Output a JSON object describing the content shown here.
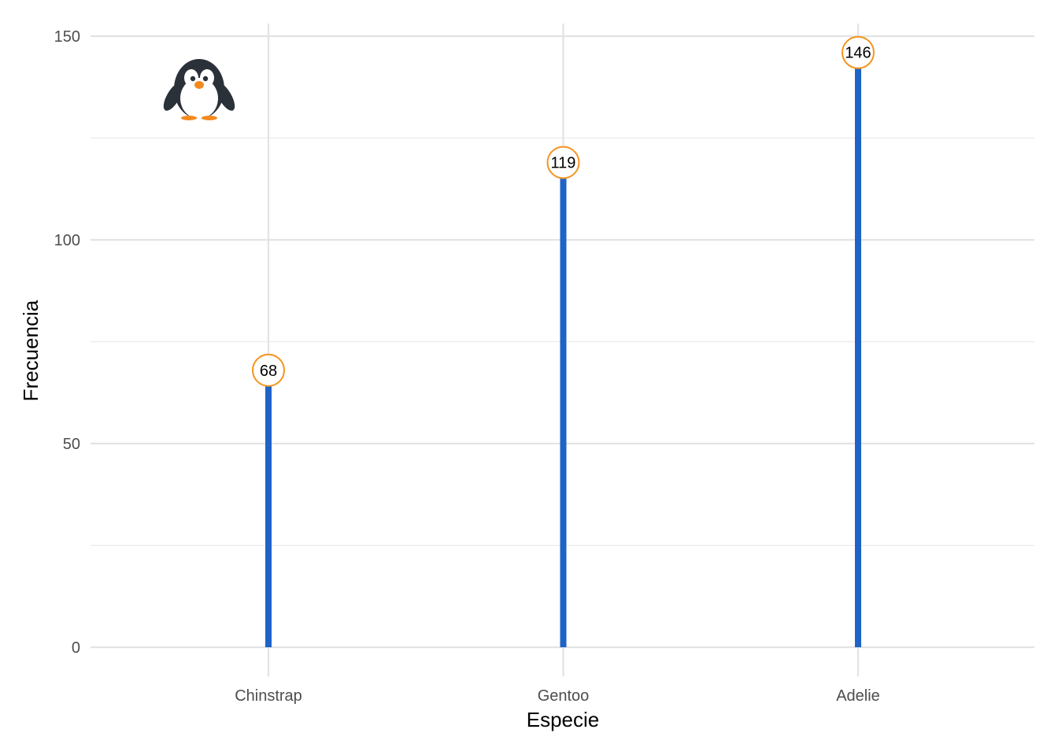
{
  "chart_data": {
    "type": "lollipop",
    "categories": [
      "Chinstrap",
      "Gentoo",
      "Adelie"
    ],
    "values": [
      68,
      119,
      146
    ],
    "xlabel": "Especie",
    "ylabel": "Frecuencia",
    "ylim": [
      -3,
      152
    ],
    "y_ticks": [
      0,
      50,
      100,
      150
    ],
    "y_minor_ticks": [
      25,
      75,
      125
    ],
    "grid": true,
    "stem_color": "#1f63c7",
    "point_fill": "#ffffff",
    "point_stroke": "#f5941f",
    "decoration_icon": "penguin-icon"
  }
}
